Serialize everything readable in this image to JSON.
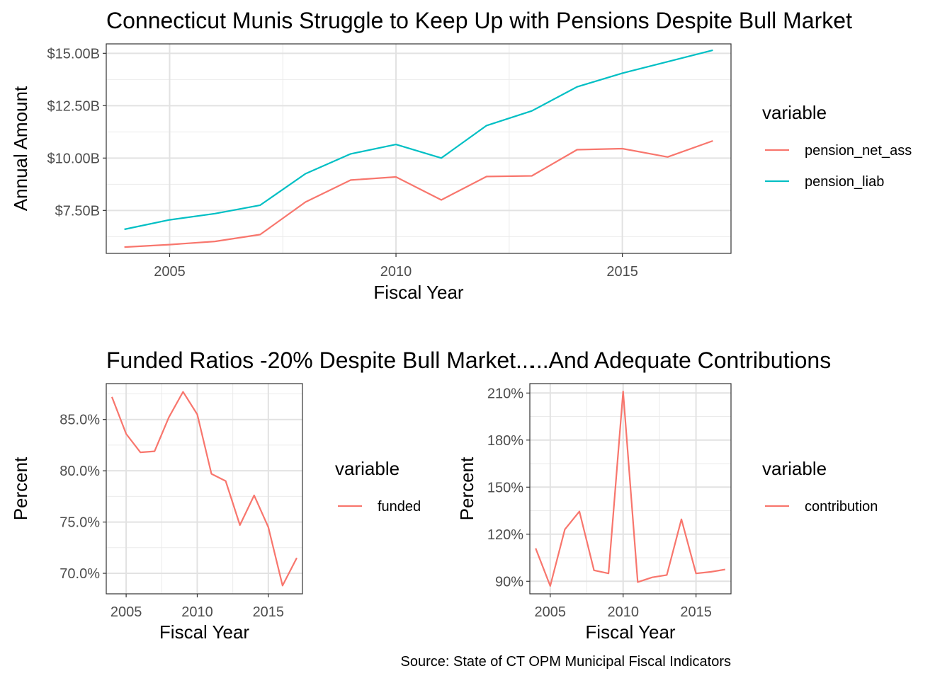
{
  "caption": "Source: State of CT OPM Municipal Fiscal Indicators",
  "colors": {
    "series1": "#F8766D",
    "series2": "#00BFC4"
  },
  "chart_data": [
    {
      "type": "line",
      "title": "Connecticut Munis Struggle to Keep Up with Pensions Despite Bull Market",
      "xlabel": "Fiscal Year",
      "ylabel": "Annual Amount",
      "xlim": [
        2003.6,
        2017.4
      ],
      "ylim": [
        5.45,
        15.45
      ],
      "x_ticks": [
        2005,
        2010,
        2015
      ],
      "x_tick_labels": [
        "2005",
        "2010",
        "2015"
      ],
      "y_ticks": [
        7.5,
        10,
        12.5,
        15
      ],
      "y_tick_labels": [
        "$7.50B",
        "$10.00B",
        "$12.50B",
        "$15.00B"
      ],
      "grid": true,
      "legend_title": "variable",
      "legend_position": "right",
      "x": [
        2004,
        2005,
        2006,
        2007,
        2008,
        2009,
        2010,
        2011,
        2012,
        2013,
        2014,
        2015,
        2016,
        2017
      ],
      "series": [
        {
          "name": "pension_net_ass",
          "color": "#F8766D",
          "values": [
            5.75,
            5.87,
            6.02,
            6.35,
            7.9,
            8.95,
            9.1,
            8.0,
            9.12,
            9.15,
            10.4,
            10.45,
            10.05,
            10.82
          ]
        },
        {
          "name": "pension_liab",
          "color": "#00BFC4",
          "values": [
            6.6,
            7.05,
            7.35,
            7.75,
            9.25,
            10.2,
            10.65,
            10.0,
            11.55,
            12.25,
            13.4,
            14.05,
            14.6,
            15.15
          ]
        }
      ]
    },
    {
      "type": "line",
      "title": "Funded Ratios -20% Despite Bull Market...",
      "xlabel": "Fiscal Year",
      "ylabel": "Percent",
      "xlim": [
        2003.6,
        2017.4
      ],
      "ylim": [
        68.0,
        88.5
      ],
      "x_ticks": [
        2005,
        2010,
        2015
      ],
      "x_tick_labels": [
        "2005",
        "2010",
        "2015"
      ],
      "y_ticks": [
        70,
        75,
        80,
        85
      ],
      "y_tick_labels": [
        "70.0%",
        "75.0%",
        "80.0%",
        "85.0%"
      ],
      "grid": true,
      "legend_title": "variable",
      "legend_position": "right",
      "x": [
        2004,
        2005,
        2006,
        2007,
        2008,
        2009,
        2010,
        2011,
        2012,
        2013,
        2014,
        2015,
        2016,
        2017
      ],
      "series": [
        {
          "name": "funded",
          "color": "#F8766D",
          "values": [
            87.2,
            83.6,
            81.8,
            81.9,
            85.2,
            87.7,
            85.5,
            79.7,
            79.0,
            74.7,
            77.6,
            74.5,
            68.8,
            71.5
          ]
        }
      ]
    },
    {
      "type": "line",
      "title": "...And Adequate Contributions",
      "xlabel": "Fiscal Year",
      "ylabel": "Percent",
      "xlim": [
        2003.6,
        2017.4
      ],
      "ylim": [
        82,
        216
      ],
      "x_ticks": [
        2005,
        2010,
        2015
      ],
      "x_tick_labels": [
        "2005",
        "2010",
        "2015"
      ],
      "y_ticks": [
        90,
        120,
        150,
        180,
        210
      ],
      "y_tick_labels": [
        "90%",
        "120%",
        "150%",
        "180%",
        "210%"
      ],
      "grid": true,
      "legend_title": "variable",
      "legend_position": "right",
      "x": [
        2004,
        2005,
        2006,
        2007,
        2008,
        2009,
        2010,
        2011,
        2012,
        2013,
        2014,
        2015,
        2016,
        2017
      ],
      "series": [
        {
          "name": "contribution",
          "color": "#F8766D",
          "values": [
            111,
            87,
            123,
            134.5,
            97,
            95,
            211,
            89.5,
            92.5,
            94,
            129.5,
            95,
            96,
            97.5
          ]
        }
      ]
    }
  ]
}
